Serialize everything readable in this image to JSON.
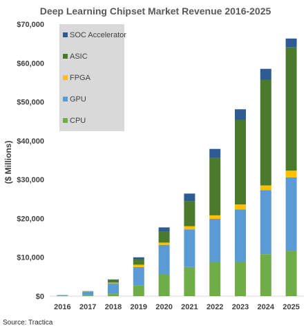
{
  "chart_data": {
    "type": "bar",
    "stacked": true,
    "title": "Deep Learning Chipset Market Revenue 2016-2025",
    "ylabel": "($ Millions)",
    "xlabel": "",
    "source": "Source: Tractica",
    "ylim": [
      0,
      70000
    ],
    "yticks": [
      "$0",
      "$10,000",
      "$20,000",
      "$30,000",
      "$40,000",
      "$50,000",
      "$60,000",
      "$70,000"
    ],
    "categories": [
      "2016",
      "2017",
      "2018",
      "2019",
      "2020",
      "2021",
      "2022",
      "2023",
      "2024",
      "2025"
    ],
    "legend_position": "top-left, inside plot",
    "grid": false,
    "series": [
      {
        "name": "CPU",
        "color": "#70AD47",
        "values": [
          50,
          150,
          700,
          2700,
          5500,
          7500,
          8800,
          8800,
          10800,
          11700
        ]
      },
      {
        "name": "GPU",
        "color": "#5B9BD5",
        "values": [
          200,
          1000,
          2600,
          4800,
          7700,
          9700,
          11100,
          13500,
          16500,
          18900
        ]
      },
      {
        "name": "FPGA",
        "color": "#FFC000",
        "values": [
          20,
          60,
          200,
          600,
          600,
          800,
          900,
          1300,
          1200,
          1700
        ]
      },
      {
        "name": "ASIC",
        "color": "#4A7A2B",
        "values": [
          30,
          60,
          600,
          1400,
          2800,
          6500,
          14800,
          21800,
          27200,
          31700
        ]
      },
      {
        "name": "SOC Accelerator",
        "color": "#2E5B91",
        "values": [
          0,
          30,
          200,
          500,
          1100,
          1900,
          2300,
          2700,
          2800,
          2300
        ]
      }
    ],
    "legend_order": [
      "SOC Accelerator",
      "ASIC",
      "FPGA",
      "GPU",
      "CPU"
    ]
  }
}
